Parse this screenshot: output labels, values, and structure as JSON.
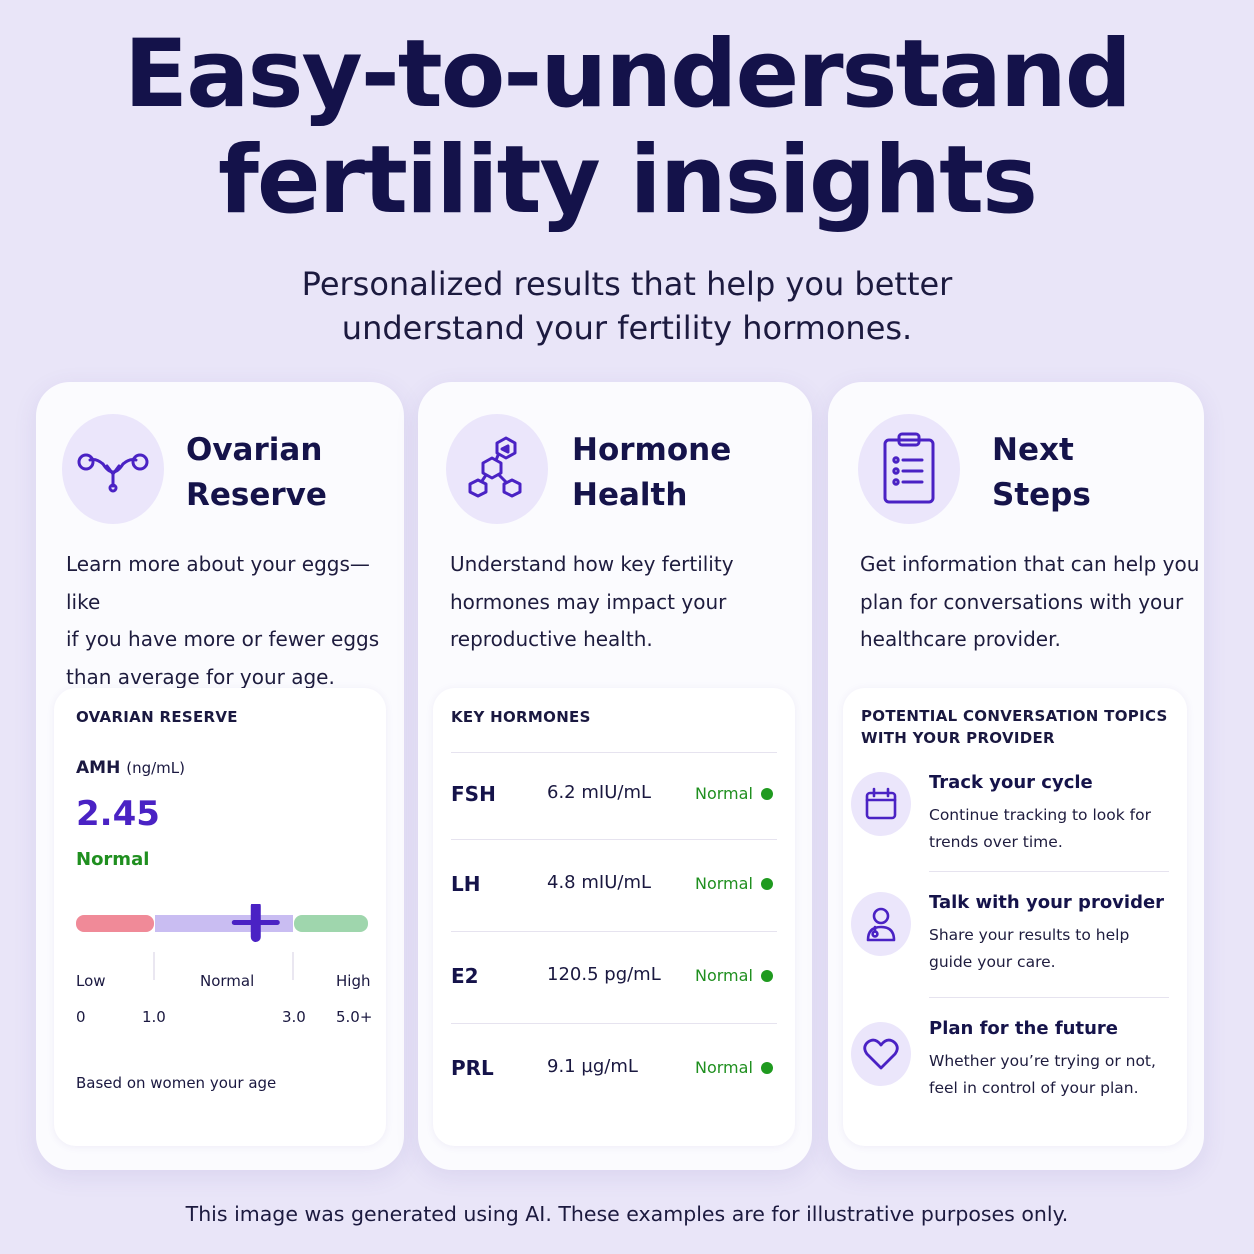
{
  "header": {
    "title_line1": "Easy-to-understand",
    "title_line2": "fertility insights",
    "subtitle_line1": "Personalized results that help you better",
    "subtitle_line2": "understand your fertility hormones."
  },
  "colors": {
    "accent": "#4a22c4",
    "normal_green": "#1f8f1f",
    "range_low": "#f08a98",
    "range_normal": "#c9bdf2",
    "range_high": "#9fd6ad",
    "background": "#e9e5f8"
  },
  "ovarian": {
    "icon": "uterus-icon",
    "title_line1": "Ovarian",
    "title_line2": "Reserve",
    "desc_line1": "Learn more about your eggs—like",
    "desc_line2": "if you have more or fewer eggs",
    "desc_line3": "than average for your age.",
    "panel_label": "OVARIAN RESERVE",
    "amh_label": "AMH",
    "amh_unit": "(ng/mL)",
    "amh_value": "2.45",
    "amh_status": "Normal",
    "amh_numeric": 2.45,
    "scale_labels": {
      "low": "Low",
      "normal": "Normal",
      "high": "High"
    },
    "ticks": [
      "0",
      "1.0",
      "3.0",
      "5.0+"
    ],
    "based_on": "Based on women your age"
  },
  "hormone": {
    "icon": "molecule-icon",
    "title_line1": "Hormone",
    "title_line2": "Health",
    "desc_line1": "Understand how key fertility",
    "desc_line2": "hormones may impact your",
    "desc_line3": "reproductive health.",
    "panel_label": "KEY HORMONES",
    "rows": [
      {
        "name": "FSH",
        "value": "6.2",
        "unit": "mIU/mL",
        "status": "Normal"
      },
      {
        "name": "LH",
        "value": "4.8",
        "unit": "mIU/mL",
        "status": "Normal"
      },
      {
        "name": "E2",
        "value": "120.5",
        "unit": "pg/mL",
        "status": "Normal"
      },
      {
        "name": "PRL",
        "value": "9.1",
        "unit": "µg/mL",
        "status": "Normal"
      }
    ]
  },
  "next": {
    "icon": "clipboard-icon",
    "title_line1": "Next",
    "title_line2": "Steps",
    "desc_line1": "Get information that can help you",
    "desc_line2": "plan for conversations with your",
    "desc_line3": "healthcare provider.",
    "panel_label_line1": "POTENTIAL CONVERSATION TOPICS",
    "panel_label_line2": "WITH YOUR PROVIDER",
    "topics": [
      {
        "icon": "calendar-icon",
        "title": "Track your cycle",
        "desc_line1": "Continue tracking to look for",
        "desc_line2": "trends over time."
      },
      {
        "icon": "provider-icon",
        "title": "Talk with your provider",
        "desc_line1": "Share your results to help",
        "desc_line2": "guide your care."
      },
      {
        "icon": "heart-icon",
        "title": "Plan for the future",
        "desc_line1": "Whether you’re trying or not,",
        "desc_line2": "feel in control of your plan."
      }
    ]
  },
  "footer": "This image was generated using AI. These examples are for illustrative purposes only."
}
